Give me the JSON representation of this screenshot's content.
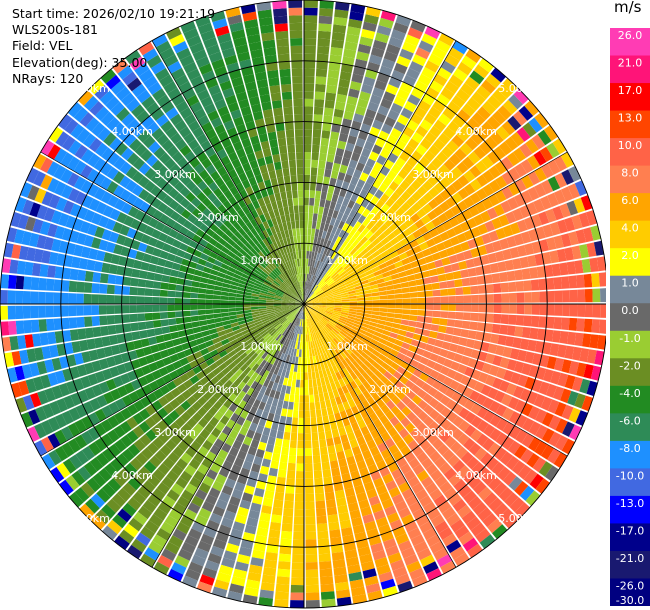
{
  "header": {
    "start_time": "Start time: 2026/02/10 19:21:19",
    "instrument": "WLS200s-181",
    "field": "Field: VEL",
    "elevation": "Elevation(deg): 35.00",
    "nrays": "NRays: 120"
  },
  "chart_data": {
    "type": "ppi_velocity",
    "field": "VEL",
    "units": "m/s",
    "elevation_deg": 35.0,
    "n_rays": 120,
    "range_rings_km": [
      1.0,
      2.0,
      3.0,
      4.0,
      5.0
    ],
    "range_ring_labels": [
      "1.00km",
      "2.00km",
      "3.00km",
      "4.00km",
      "5.00km"
    ],
    "spoke_angles_deg": [
      0,
      30,
      60,
      90,
      120,
      150,
      180,
      210,
      240,
      270,
      300,
      330
    ],
    "colorbar": {
      "unit_label": "m/s",
      "tick_labels": [
        "26.0",
        "21.0",
        "17.0",
        "13.0",
        "10.0",
        "8.0",
        "6.0",
        "4.0",
        "2.0",
        "1.0",
        "0.0",
        "-1.0",
        "-2.0",
        "-4.0",
        "-6.0",
        "-8.0",
        "-10.0",
        "-13.0",
        "-17.0",
        "-21.0",
        "-26.0",
        "-30.0"
      ],
      "bands": [
        {
          "label": "26.0",
          "color": "#ff3cb4"
        },
        {
          "label": "21.0",
          "color": "#ff1478"
        },
        {
          "label": "17.0",
          "color": "#ff0000"
        },
        {
          "label": "13.0",
          "color": "#ff4500"
        },
        {
          "label": "10.0",
          "color": "#ff6347"
        },
        {
          "label": "8.0",
          "color": "#ff7f50"
        },
        {
          "label": "6.0",
          "color": "#ffa500"
        },
        {
          "label": "4.0",
          "color": "#ffcc00"
        },
        {
          "label": "2.0",
          "color": "#ffff00"
        },
        {
          "label": "1.0",
          "color": "#778899"
        },
        {
          "label": "0.0",
          "color": "#696969"
        },
        {
          "label": "-1.0",
          "color": "#9acd32"
        },
        {
          "label": "-2.0",
          "color": "#6b8e23"
        },
        {
          "label": "-4.0",
          "color": "#228b22"
        },
        {
          "label": "-6.0",
          "color": "#2e8b57"
        },
        {
          "label": "-8.0",
          "color": "#1e90ff"
        },
        {
          "label": "-10.0",
          "color": "#4169e1"
        },
        {
          "label": "-13.0",
          "color": "#0000ff"
        },
        {
          "label": "-17.0",
          "color": "#00008b"
        },
        {
          "label": "-21.0",
          "color": "#191970"
        },
        {
          "label": "-26.0",
          "color": "#000080"
        }
      ]
    }
  }
}
